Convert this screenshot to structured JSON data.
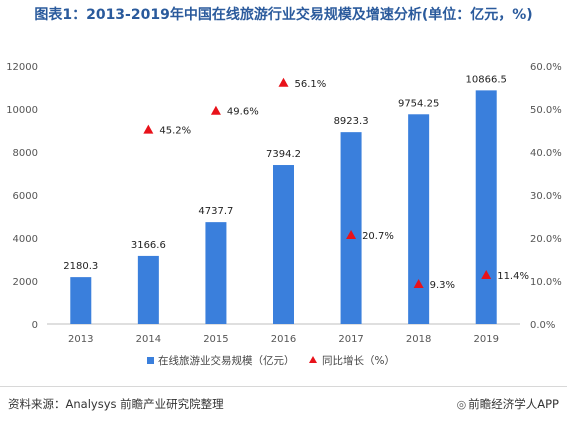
{
  "title": "图表1：2013-2019年中国在线旅游行业交易规模及增速分析(单位：亿元，%)",
  "chart_data": {
    "type": "bar",
    "categories": [
      "2013",
      "2014",
      "2015",
      "2016",
      "2017",
      "2018",
      "2019"
    ],
    "series": [
      {
        "name": "在线旅游业交易规模（亿元）",
        "kind": "bar",
        "axis": "left",
        "values": [
          2180.3,
          3166.6,
          4737.7,
          7394.2,
          8923.3,
          9754.25,
          10866.5
        ],
        "labels": [
          "2180.3",
          "3166.6",
          "4737.7",
          "7394.2",
          "8923.3",
          "9754.25",
          "10866.5"
        ]
      },
      {
        "name": "同比增长（%）",
        "kind": "marker",
        "axis": "right",
        "values": [
          null,
          45.2,
          49.6,
          56.1,
          20.7,
          9.3,
          11.4
        ],
        "labels": [
          "",
          "45.2%",
          "49.6%",
          "56.1%",
          "20.7%",
          "9.3%",
          "11.4%"
        ]
      }
    ],
    "y_left": {
      "min": 0,
      "max": 12000,
      "ticks": [
        "0",
        "2000",
        "4000",
        "6000",
        "8000",
        "10000",
        "12000"
      ]
    },
    "y_right": {
      "min": 0,
      "max": 60,
      "ticks": [
        "0.0%",
        "10.0%",
        "20.0%",
        "30.0%",
        "40.0%",
        "50.0%",
        "60.0%"
      ]
    },
    "grid": false,
    "legend": "bottom",
    "colors": {
      "bar": "#3a7fdc",
      "marker": "#e8121a"
    }
  },
  "footer": {
    "source": "资料来源：Analysys 前瞻产业研究院整理",
    "brand": "前瞻经济学人APP",
    "brand_icon": "compass-icon"
  }
}
